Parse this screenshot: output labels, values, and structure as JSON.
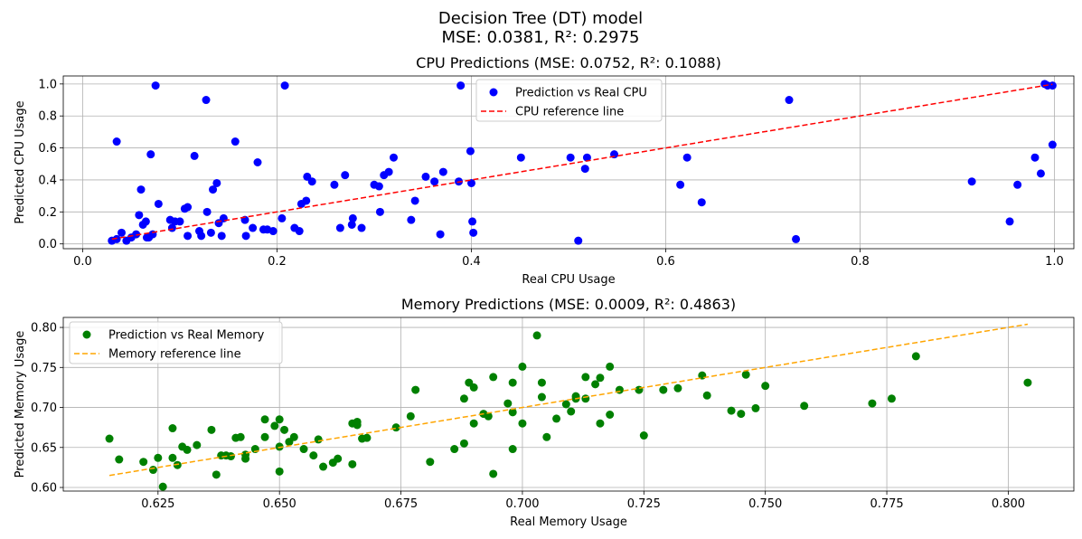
{
  "figure": {
    "suptitle_line1": "Decision Tree (DT) model",
    "suptitle_line2": "MSE: 0.0381, R²: 0.2975"
  },
  "chart_data": [
    {
      "type": "scatter",
      "title": "CPU Predictions (MSE: 0.0752, R²: 0.1088)",
      "xlabel": "Real CPU Usage",
      "ylabel": "Predicted CPU Usage",
      "xlim": [
        -0.02,
        1.02
      ],
      "ylim": [
        -0.03,
        1.05
      ],
      "xticks": [
        0.0,
        0.2,
        0.4,
        0.6,
        0.8,
        1.0
      ],
      "xtick_labels": [
        "0.0",
        "0.2",
        "0.4",
        "0.6",
        "0.8",
        "1.0"
      ],
      "yticks": [
        0.0,
        0.2,
        0.4,
        0.6,
        0.8,
        1.0
      ],
      "ytick_labels": [
        "0.0",
        "0.2",
        "0.4",
        "0.6",
        "0.8",
        "1.0"
      ],
      "grid": true,
      "legend_position": "upper center",
      "series": [
        {
          "name": "Prediction vs Real CPU",
          "kind": "scatter",
          "color": "#0000ff",
          "points": [
            [
              0.03,
              0.02
            ],
            [
              0.035,
              0.03
            ],
            [
              0.04,
              0.07
            ],
            [
              0.045,
              0.02
            ],
            [
              0.05,
              0.04
            ],
            [
              0.055,
              0.06
            ],
            [
              0.058,
              0.18
            ],
            [
              0.06,
              0.34
            ],
            [
              0.062,
              0.12
            ],
            [
              0.065,
              0.14
            ],
            [
              0.066,
              0.04
            ],
            [
              0.068,
              0.04
            ],
            [
              0.07,
              0.56
            ],
            [
              0.072,
              0.06
            ],
            [
              0.075,
              0.99
            ],
            [
              0.078,
              0.25
            ],
            [
              0.09,
              0.15
            ],
            [
              0.092,
              0.1
            ],
            [
              0.095,
              0.14
            ],
            [
              0.1,
              0.14
            ],
            [
              0.105,
              0.22
            ],
            [
              0.108,
              0.23
            ],
            [
              0.108,
              0.05
            ],
            [
              0.115,
              0.55
            ],
            [
              0.12,
              0.08
            ],
            [
              0.122,
              0.05
            ],
            [
              0.127,
              0.9
            ],
            [
              0.128,
              0.2
            ],
            [
              0.132,
              0.07
            ],
            [
              0.134,
              0.34
            ],
            [
              0.138,
              0.38
            ],
            [
              0.14,
              0.13
            ],
            [
              0.143,
              0.05
            ],
            [
              0.145,
              0.16
            ],
            [
              0.157,
              0.64
            ],
            [
              0.167,
              0.15
            ],
            [
              0.168,
              0.05
            ],
            [
              0.175,
              0.1
            ],
            [
              0.18,
              0.51
            ],
            [
              0.186,
              0.09
            ],
            [
              0.19,
              0.09
            ],
            [
              0.196,
              0.08
            ],
            [
              0.205,
              0.16
            ],
            [
              0.208,
              0.99
            ],
            [
              0.218,
              0.1
            ],
            [
              0.223,
              0.08
            ],
            [
              0.225,
              0.25
            ],
            [
              0.23,
              0.27
            ],
            [
              0.231,
              0.42
            ],
            [
              0.236,
              0.39
            ],
            [
              0.259,
              0.37
            ],
            [
              0.265,
              0.1
            ],
            [
              0.27,
              0.43
            ],
            [
              0.277,
              0.12
            ],
            [
              0.278,
              0.16
            ],
            [
              0.287,
              0.1
            ],
            [
              0.3,
              0.37
            ],
            [
              0.305,
              0.36
            ],
            [
              0.306,
              0.2
            ],
            [
              0.31,
              0.43
            ],
            [
              0.315,
              0.45
            ],
            [
              0.32,
              0.54
            ],
            [
              0.338,
              0.15
            ],
            [
              0.342,
              0.27
            ],
            [
              0.353,
              0.42
            ],
            [
              0.362,
              0.39
            ],
            [
              0.368,
              0.06
            ],
            [
              0.371,
              0.45
            ],
            [
              0.387,
              0.39
            ],
            [
              0.389,
              0.99
            ],
            [
              0.399,
              0.58
            ],
            [
              0.4,
              0.38
            ],
            [
              0.401,
              0.14
            ],
            [
              0.402,
              0.07
            ],
            [
              0.451,
              0.54
            ],
            [
              0.502,
              0.54
            ],
            [
              0.51,
              0.02
            ],
            [
              0.517,
              0.47
            ],
            [
              0.519,
              0.54
            ],
            [
              0.547,
              0.56
            ],
            [
              0.615,
              0.37
            ],
            [
              0.622,
              0.54
            ],
            [
              0.637,
              0.26
            ],
            [
              0.727,
              0.9
            ],
            [
              0.734,
              0.03
            ],
            [
              0.915,
              0.39
            ],
            [
              0.954,
              0.14
            ],
            [
              0.962,
              0.37
            ],
            [
              0.98,
              0.54
            ],
            [
              0.986,
              0.44
            ],
            [
              0.99,
              1.0
            ],
            [
              0.993,
              0.99
            ],
            [
              0.998,
              0.99
            ],
            [
              0.998,
              0.62
            ],
            [
              0.035,
              0.64
            ]
          ]
        },
        {
          "name": "CPU reference line",
          "kind": "line",
          "style": "dashed",
          "color": "#ff0000",
          "points": [
            [
              0.03,
              0.03
            ],
            [
              0.998,
              0.998
            ]
          ]
        }
      ]
    },
    {
      "type": "scatter",
      "title": "Memory Predictions (MSE: 0.0009, R²: 0.4863)",
      "xlabel": "Real Memory Usage",
      "ylabel": "Predicted Memory Usage",
      "xlim": [
        0.6055,
        0.8135
      ],
      "ylim": [
        0.5955,
        0.8125
      ],
      "xticks": [
        0.625,
        0.65,
        0.675,
        0.7,
        0.725,
        0.75,
        0.775,
        0.8
      ],
      "xtick_labels": [
        "0.625",
        "0.650",
        "0.675",
        "0.700",
        "0.725",
        "0.750",
        "0.775",
        "0.800"
      ],
      "yticks": [
        0.6,
        0.65,
        0.7,
        0.75,
        0.8
      ],
      "ytick_labels": [
        "0.60",
        "0.65",
        "0.70",
        "0.75",
        "0.80"
      ],
      "grid": true,
      "legend_position": "upper left",
      "series": [
        {
          "name": "Prediction vs Real Memory",
          "kind": "scatter",
          "color": "#008000",
          "points": [
            [
              0.615,
              0.661
            ],
            [
              0.617,
              0.635
            ],
            [
              0.622,
              0.632
            ],
            [
              0.624,
              0.622
            ],
            [
              0.625,
              0.637
            ],
            [
              0.626,
              0.601
            ],
            [
              0.628,
              0.674
            ],
            [
              0.628,
              0.637
            ],
            [
              0.629,
              0.628
            ],
            [
              0.63,
              0.651
            ],
            [
              0.631,
              0.647
            ],
            [
              0.633,
              0.653
            ],
            [
              0.636,
              0.672
            ],
            [
              0.637,
              0.616
            ],
            [
              0.638,
              0.64
            ],
            [
              0.639,
              0.64
            ],
            [
              0.64,
              0.639
            ],
            [
              0.641,
              0.662
            ],
            [
              0.642,
              0.663
            ],
            [
              0.643,
              0.636
            ],
            [
              0.643,
              0.641
            ],
            [
              0.645,
              0.648
            ],
            [
              0.647,
              0.685
            ],
            [
              0.647,
              0.663
            ],
            [
              0.649,
              0.677
            ],
            [
              0.65,
              0.651
            ],
            [
              0.65,
              0.62
            ],
            [
              0.65,
              0.685
            ],
            [
              0.651,
              0.672
            ],
            [
              0.652,
              0.657
            ],
            [
              0.653,
              0.663
            ],
            [
              0.655,
              0.648
            ],
            [
              0.657,
              0.64
            ],
            [
              0.658,
              0.66
            ],
            [
              0.659,
              0.626
            ],
            [
              0.661,
              0.631
            ],
            [
              0.662,
              0.636
            ],
            [
              0.665,
              0.68
            ],
            [
              0.665,
              0.629
            ],
            [
              0.666,
              0.682
            ],
            [
              0.666,
              0.678
            ],
            [
              0.667,
              0.661
            ],
            [
              0.668,
              0.662
            ],
            [
              0.674,
              0.675
            ],
            [
              0.677,
              0.689
            ],
            [
              0.678,
              0.722
            ],
            [
              0.681,
              0.632
            ],
            [
              0.686,
              0.648
            ],
            [
              0.688,
              0.655
            ],
            [
              0.688,
              0.711
            ],
            [
              0.689,
              0.731
            ],
            [
              0.69,
              0.725
            ],
            [
              0.69,
              0.68
            ],
            [
              0.692,
              0.692
            ],
            [
              0.693,
              0.689
            ],
            [
              0.694,
              0.617
            ],
            [
              0.694,
              0.738
            ],
            [
              0.697,
              0.705
            ],
            [
              0.698,
              0.731
            ],
            [
              0.698,
              0.694
            ],
            [
              0.698,
              0.648
            ],
            [
              0.7,
              0.68
            ],
            [
              0.7,
              0.751
            ],
            [
              0.703,
              0.79
            ],
            [
              0.704,
              0.731
            ],
            [
              0.704,
              0.713
            ],
            [
              0.705,
              0.663
            ],
            [
              0.707,
              0.686
            ],
            [
              0.709,
              0.704
            ],
            [
              0.71,
              0.695
            ],
            [
              0.711,
              0.714
            ],
            [
              0.711,
              0.711
            ],
            [
              0.713,
              0.711
            ],
            [
              0.713,
              0.738
            ],
            [
              0.715,
              0.729
            ],
            [
              0.716,
              0.68
            ],
            [
              0.716,
              0.737
            ],
            [
              0.718,
              0.751
            ],
            [
              0.718,
              0.691
            ],
            [
              0.72,
              0.722
            ],
            [
              0.724,
              0.722
            ],
            [
              0.725,
              0.665
            ],
            [
              0.729,
              0.722
            ],
            [
              0.732,
              0.724
            ],
            [
              0.737,
              0.74
            ],
            [
              0.738,
              0.715
            ],
            [
              0.743,
              0.696
            ],
            [
              0.745,
              0.692
            ],
            [
              0.746,
              0.741
            ],
            [
              0.748,
              0.699
            ],
            [
              0.75,
              0.727
            ],
            [
              0.758,
              0.702
            ],
            [
              0.772,
              0.705
            ],
            [
              0.776,
              0.711
            ],
            [
              0.781,
              0.764
            ],
            [
              0.804,
              0.731
            ]
          ]
        },
        {
          "name": "Memory reference line",
          "kind": "line",
          "style": "dashed",
          "color": "#ffa500",
          "points": [
            [
              0.615,
              0.615
            ],
            [
              0.804,
              0.804
            ]
          ]
        }
      ]
    }
  ]
}
